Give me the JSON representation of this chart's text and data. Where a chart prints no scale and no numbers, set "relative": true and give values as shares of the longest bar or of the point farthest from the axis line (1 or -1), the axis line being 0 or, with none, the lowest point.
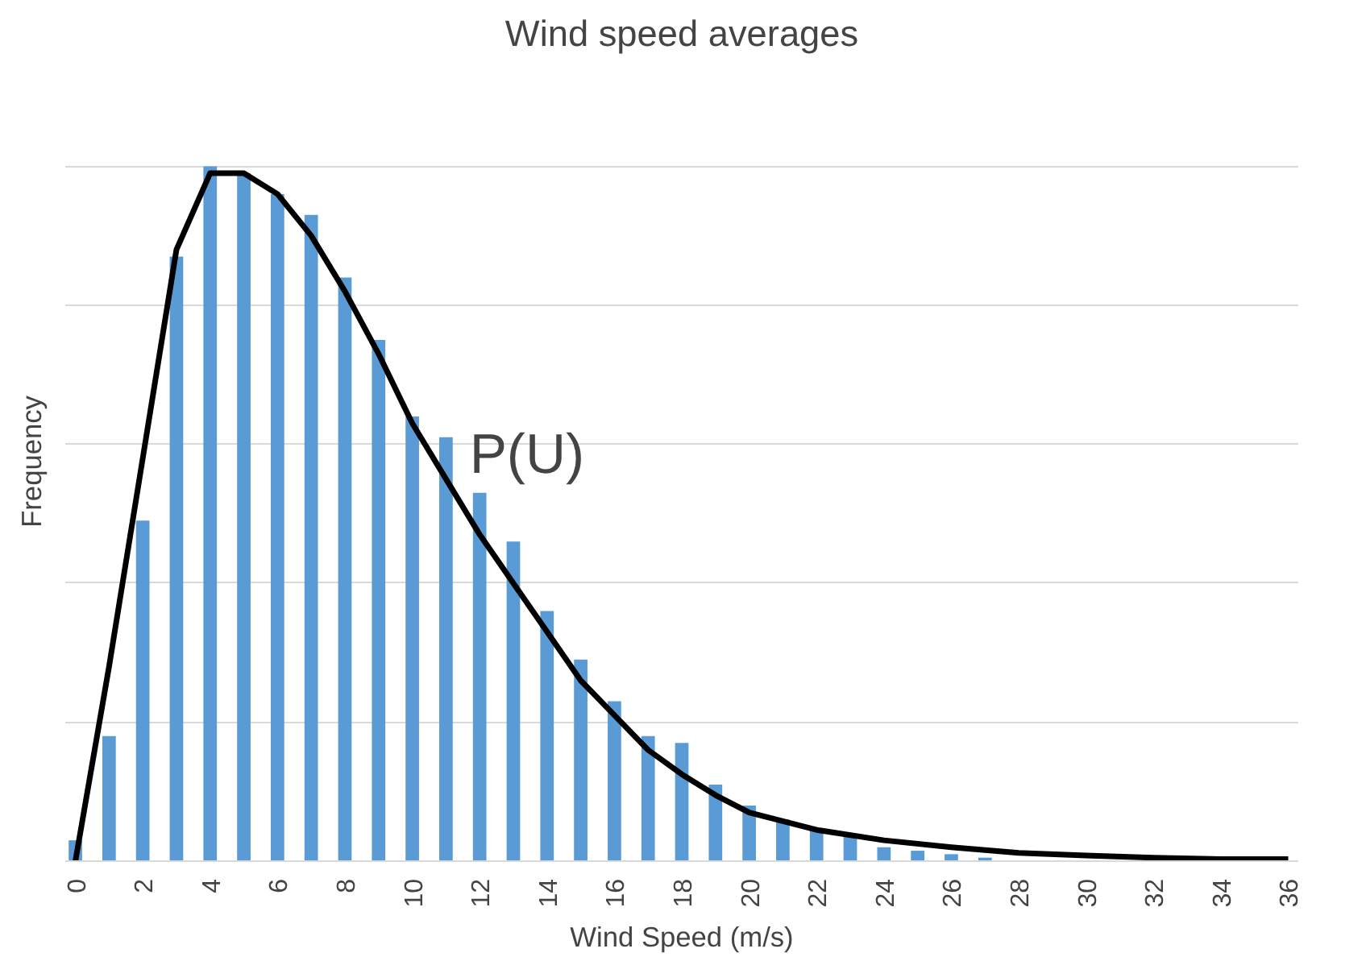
{
  "chart_data": {
    "type": "bar",
    "title": "Wind speed averages",
    "xlabel": "Wind Speed (m/s)",
    "ylabel": "Frequency",
    "relative": true,
    "grid": "y",
    "x": [
      0,
      1,
      2,
      3,
      4,
      5,
      6,
      7,
      8,
      9,
      10,
      11,
      12,
      13,
      14,
      15,
      16,
      17,
      18,
      19,
      20,
      21,
      22,
      23,
      24,
      25,
      26,
      27,
      28,
      29,
      30,
      31,
      32,
      33,
      34,
      35,
      36
    ],
    "xlim": [
      -0.3,
      36.3
    ],
    "xticks": [
      0,
      2,
      4,
      6,
      8,
      10,
      12,
      14,
      16,
      18,
      20,
      22,
      24,
      26,
      28,
      30,
      32,
      34,
      36
    ],
    "series": [
      {
        "color": "#5b9bd5",
        "values": [
          0.03,
          0.18,
          0.49,
          0.87,
          1.0,
          0.99,
          0.96,
          0.93,
          0.84,
          0.75,
          0.64,
          0.61,
          0.53,
          0.46,
          0.36,
          0.29,
          0.23,
          0.18,
          0.17,
          0.11,
          0.08,
          0.06,
          0.045,
          0.04,
          0.02,
          0.015,
          0.01,
          0.005,
          0,
          0,
          0,
          0,
          0,
          0,
          0,
          0,
          0
        ]
      },
      {
        "type": "line",
        "color": "#000000",
        "x": [
          0,
          1,
          2,
          3,
          4,
          4.6,
          5,
          6,
          7,
          8,
          9,
          10,
          11,
          12,
          13,
          14,
          15,
          16,
          17,
          18,
          19,
          20,
          22,
          24,
          26,
          28,
          30,
          32,
          34,
          36
        ],
        "values": [
          0,
          0.28,
          0.58,
          0.88,
          0.99,
          0.99,
          0.99,
          0.96,
          0.9,
          0.82,
          0.73,
          0.63,
          0.55,
          0.47,
          0.4,
          0.33,
          0.26,
          0.21,
          0.16,
          0.125,
          0.095,
          0.07,
          0.045,
          0.03,
          0.02,
          0.012,
          0.008,
          0.005,
          0.003,
          0.003
        ]
      }
    ],
    "annotations": [
      {
        "text": "P(U)",
        "x": 11.7,
        "y": 0.54
      }
    ]
  }
}
